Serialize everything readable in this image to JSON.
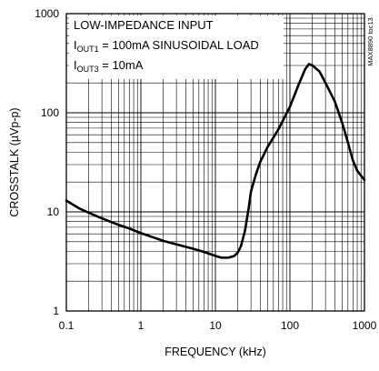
{
  "chart_data": {
    "type": "line",
    "title": "",
    "xlabel": "FREQUENCY (kHz)",
    "ylabel": "CROSSTALK (µVp-p)",
    "xscale": "log",
    "yscale": "log",
    "xlim": [
      0.1,
      1000
    ],
    "ylim": [
      1,
      1000
    ],
    "x_tick_labels": [
      "0.1",
      "1",
      "10",
      "100",
      "1000"
    ],
    "y_tick_labels": [
      "1",
      "10",
      "100",
      "1000"
    ],
    "grid": true,
    "annotations": [
      {
        "text": "LOW-IMPEDANCE INPUT"
      },
      {
        "prefix": "I",
        "sub": "OUT1",
        "suffix": " = 100mA SINUSOIDAL LOAD"
      },
      {
        "prefix": "I",
        "sub": "OUT3",
        "suffix": " = 10mA"
      }
    ],
    "figure_code": "MAX8890 toc13",
    "series": [
      {
        "color": "#000000",
        "x": [
          0.1,
          0.15,
          0.2,
          0.3,
          0.5,
          0.7,
          1,
          1.5,
          2,
          3,
          5,
          7,
          10,
          12,
          15,
          18,
          20,
          22,
          25,
          28,
          30,
          35,
          40,
          50,
          70,
          100,
          130,
          160,
          180,
          200,
          250,
          300,
          400,
          500,
          600,
          700,
          800,
          1000
        ],
        "y": [
          13,
          10.8,
          9.8,
          8.6,
          7.4,
          6.8,
          6.1,
          5.5,
          5.1,
          4.7,
          4.25,
          3.95,
          3.6,
          3.45,
          3.45,
          3.6,
          3.9,
          4.5,
          6.5,
          11,
          16,
          24,
          32,
          45,
          68,
          115,
          190,
          275,
          310,
          300,
          260,
          200,
          130,
          80,
          50,
          33,
          26,
          21
        ]
      }
    ]
  }
}
